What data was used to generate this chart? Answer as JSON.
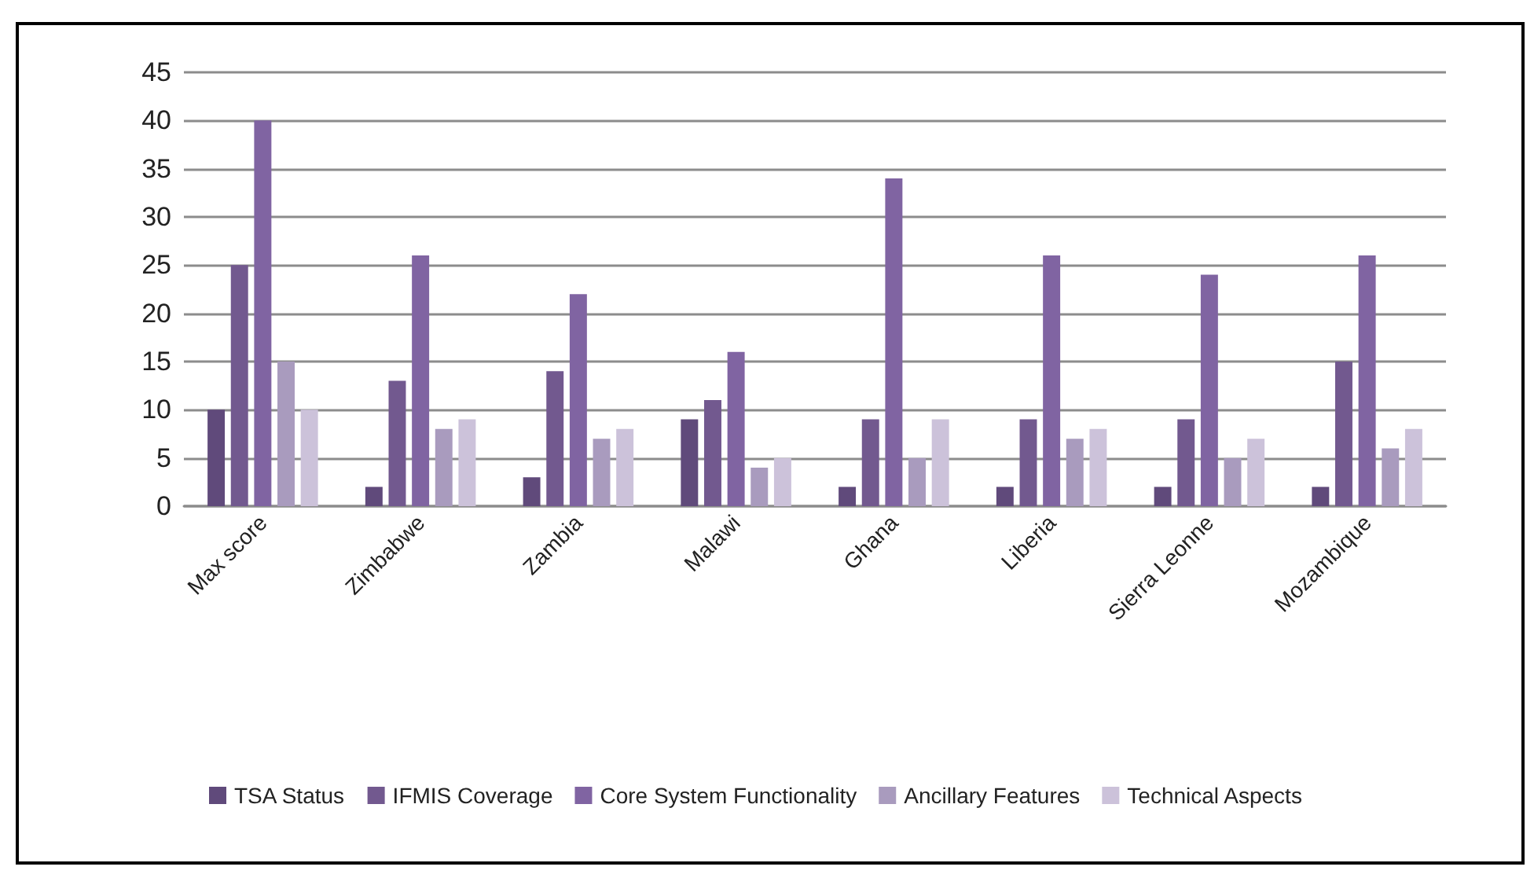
{
  "chart_data": {
    "type": "bar",
    "categories": [
      "Max score",
      "Zimbabwe",
      "Zambia",
      "Malawi",
      "Ghana",
      "Liberia",
      "Sierra Leonne",
      "Mozambique"
    ],
    "series": [
      {
        "name": "TSA Status",
        "color": "#604a7b",
        "values": [
          10,
          2,
          3,
          9,
          2,
          2,
          2,
          2
        ]
      },
      {
        "name": "IFMIS Coverage",
        "color": "#72598f",
        "values": [
          25,
          13,
          14,
          11,
          9,
          9,
          9,
          15
        ]
      },
      {
        "name": "Core System Functionality",
        "color": "#8064a2",
        "values": [
          40,
          26,
          22,
          16,
          34,
          26,
          24,
          26
        ]
      },
      {
        "name": "Ancillary Features",
        "color": "#a99bbe",
        "values": [
          15,
          8,
          7,
          4,
          5,
          7,
          5,
          6
        ]
      },
      {
        "name": "Technical Aspects",
        "color": "#ccc2da",
        "values": [
          10,
          9,
          8,
          5,
          9,
          8,
          7,
          8
        ]
      }
    ],
    "ylim": [
      0,
      45
    ],
    "yticks": [
      0,
      5,
      10,
      15,
      20,
      25,
      30,
      35,
      40,
      45
    ],
    "grid": "y",
    "legend": "bottom"
  }
}
